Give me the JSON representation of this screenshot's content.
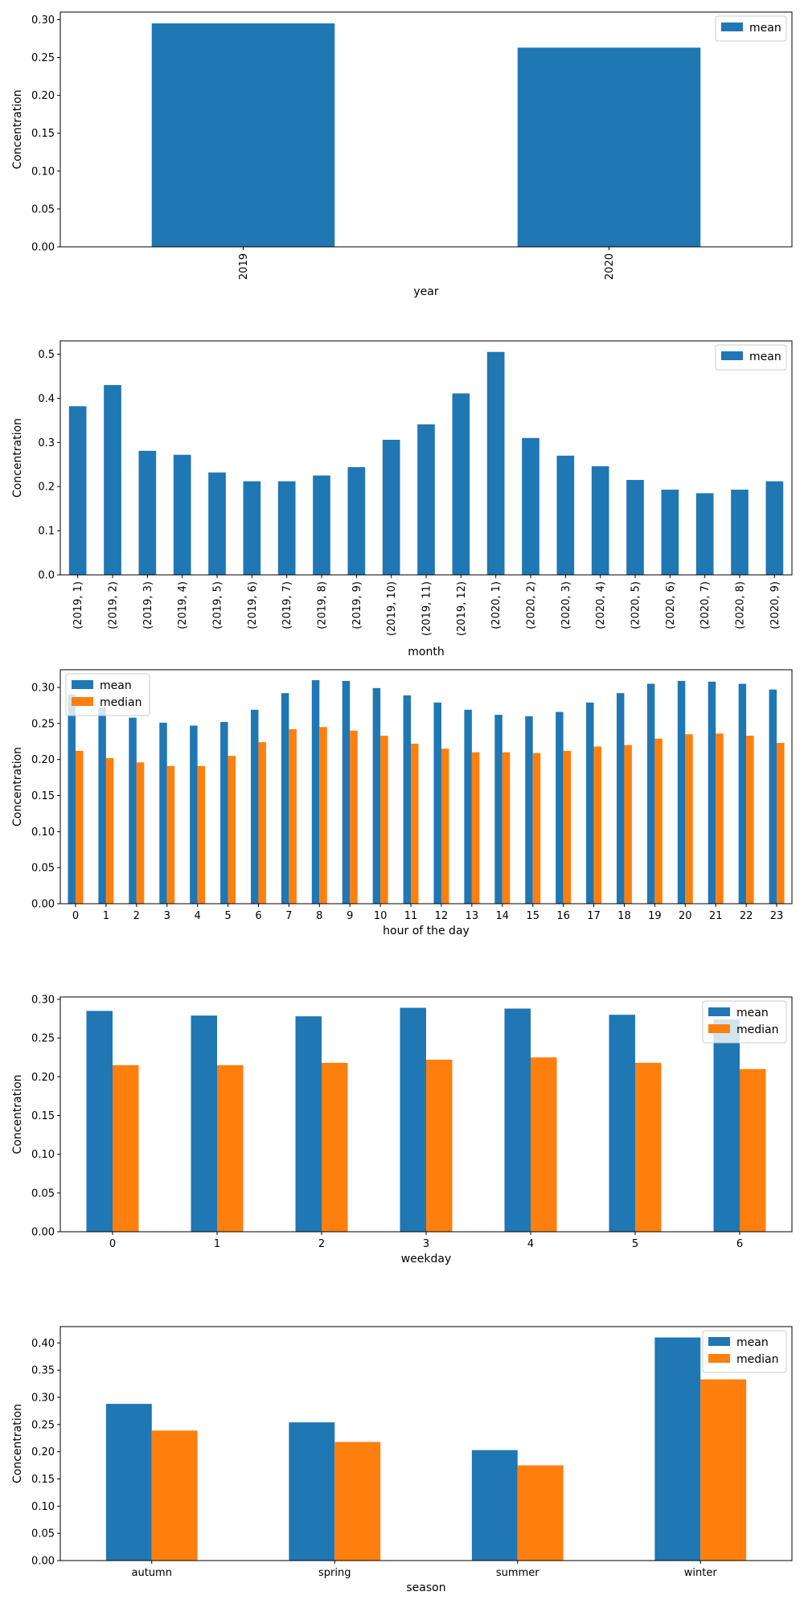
{
  "colors": {
    "mean": "#1f77b4",
    "median": "#ff7f0e"
  },
  "chart_data": [
    {
      "type": "bar",
      "xlabel": "year",
      "ylabel": "Concentration",
      "ylim": [
        0,
        0.31
      ],
      "yticks": [
        "0.00",
        "0.05",
        "0.10",
        "0.15",
        "0.20",
        "0.25",
        "0.30"
      ],
      "xtick_rotation": "vertical",
      "legend": "top-right",
      "categories": [
        "2019",
        "2020"
      ],
      "series": [
        {
          "name": "mean",
          "values": [
            0.295,
            0.263
          ]
        }
      ]
    },
    {
      "type": "bar",
      "xlabel": "month",
      "ylabel": "Concentration",
      "ylim": [
        0,
        0.53
      ],
      "yticks": [
        "0.0",
        "0.1",
        "0.2",
        "0.3",
        "0.4",
        "0.5"
      ],
      "xtick_rotation": "vertical",
      "legend": "top-right",
      "categories": [
        "(2019, 1)",
        "(2019, 2)",
        "(2019, 3)",
        "(2019, 4)",
        "(2019, 5)",
        "(2019, 6)",
        "(2019, 7)",
        "(2019, 8)",
        "(2019, 9)",
        "(2019, 10)",
        "(2019, 11)",
        "(2019, 12)",
        "(2020, 1)",
        "(2020, 2)",
        "(2020, 3)",
        "(2020, 4)",
        "(2020, 5)",
        "(2020, 6)",
        "(2020, 7)",
        "(2020, 8)",
        "(2020, 9)"
      ],
      "series": [
        {
          "name": "mean",
          "values": [
            0.382,
            0.43,
            0.281,
            0.272,
            0.232,
            0.212,
            0.212,
            0.225,
            0.244,
            0.306,
            0.341,
            0.411,
            0.505,
            0.31,
            0.27,
            0.246,
            0.215,
            0.193,
            0.185,
            0.193,
            0.212
          ]
        }
      ]
    },
    {
      "type": "bar",
      "xlabel": "hour of the day",
      "ylabel": "Concentration",
      "ylim": [
        0,
        0.3245
      ],
      "yticks": [
        "0.00",
        "0.05",
        "0.10",
        "0.15",
        "0.20",
        "0.25",
        "0.30"
      ],
      "xtick_rotation": "horizontal",
      "legend": "top-left",
      "categories": [
        "0",
        "1",
        "2",
        "3",
        "4",
        "5",
        "6",
        "7",
        "8",
        "9",
        "10",
        "11",
        "12",
        "13",
        "14",
        "15",
        "16",
        "17",
        "18",
        "19",
        "20",
        "21",
        "22",
        "23"
      ],
      "series": [
        {
          "name": "mean",
          "values": [
            0.29,
            0.272,
            0.258,
            0.251,
            0.247,
            0.252,
            0.269,
            0.292,
            0.31,
            0.309,
            0.299,
            0.289,
            0.279,
            0.269,
            0.262,
            0.26,
            0.266,
            0.279,
            0.292,
            0.305,
            0.309,
            0.308,
            0.305,
            0.297
          ]
        },
        {
          "name": "median",
          "values": [
            0.212,
            0.202,
            0.196,
            0.191,
            0.191,
            0.205,
            0.224,
            0.242,
            0.245,
            0.24,
            0.233,
            0.222,
            0.215,
            0.21,
            0.21,
            0.209,
            0.212,
            0.218,
            0.22,
            0.229,
            0.235,
            0.236,
            0.233,
            0.223
          ]
        }
      ]
    },
    {
      "type": "bar",
      "xlabel": "weekday",
      "ylabel": "Concentration",
      "ylim": [
        0,
        0.303
      ],
      "yticks": [
        "0.00",
        "0.05",
        "0.10",
        "0.15",
        "0.20",
        "0.25",
        "0.30"
      ],
      "xtick_rotation": "horizontal",
      "legend": "top-right",
      "categories": [
        "0",
        "1",
        "2",
        "3",
        "4",
        "5",
        "6"
      ],
      "series": [
        {
          "name": "mean",
          "values": [
            0.285,
            0.279,
            0.278,
            0.289,
            0.288,
            0.28,
            0.274
          ]
        },
        {
          "name": "median",
          "values": [
            0.215,
            0.215,
            0.218,
            0.222,
            0.225,
            0.218,
            0.21
          ]
        }
      ]
    },
    {
      "type": "bar",
      "xlabel": "season",
      "ylabel": "Concentration",
      "ylim": [
        0,
        0.43
      ],
      "yticks": [
        "0.00",
        "0.05",
        "0.10",
        "0.15",
        "0.20",
        "0.25",
        "0.30",
        "0.35",
        "0.40"
      ],
      "xtick_rotation": "horizontal",
      "legend": "top-right",
      "categories": [
        "autumn",
        "spring",
        "summer",
        "winter"
      ],
      "series": [
        {
          "name": "mean",
          "values": [
            0.288,
            0.254,
            0.203,
            0.41
          ]
        },
        {
          "name": "median",
          "values": [
            0.239,
            0.218,
            0.175,
            0.333
          ]
        }
      ]
    }
  ]
}
